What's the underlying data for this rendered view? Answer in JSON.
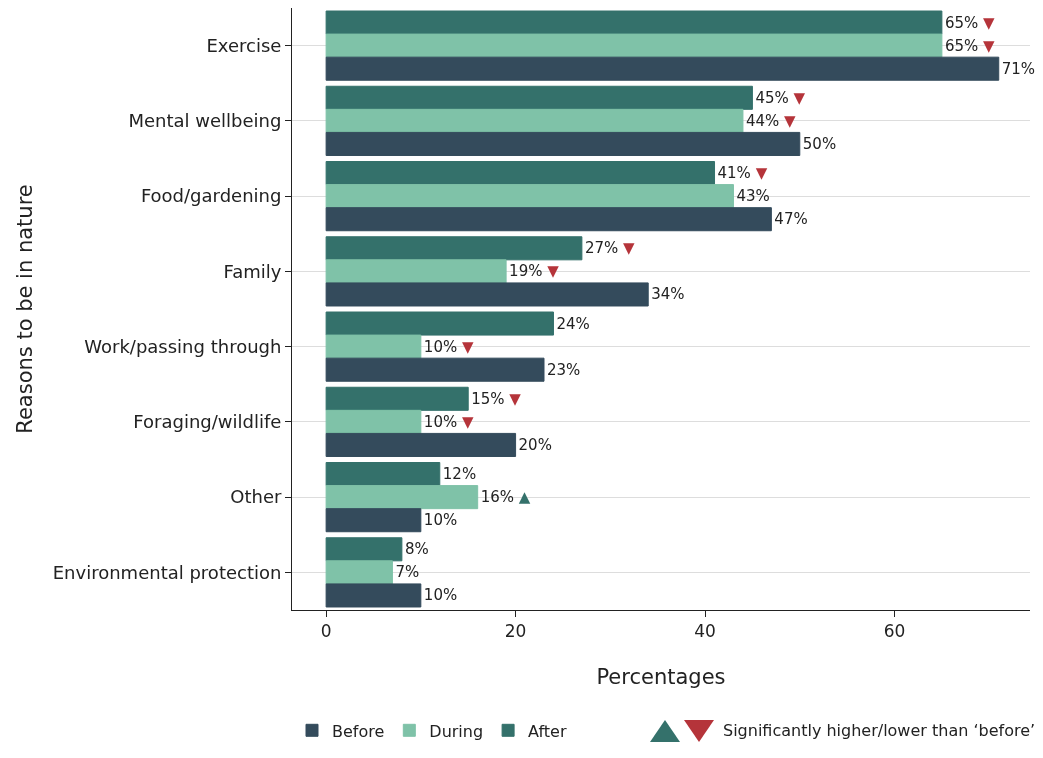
{
  "chart_data": {
    "type": "bar",
    "orientation": "horizontal",
    "categories": [
      "Exercise",
      "Mental wellbeing",
      "Food/gardening",
      "Family",
      "Work/passing through",
      "Foraging/wildlife",
      "Other",
      "Environmental protection"
    ],
    "series": [
      {
        "name": "Before",
        "color": "#344b5c",
        "values": [
          71,
          50,
          47,
          34,
          23,
          20,
          10,
          10
        ],
        "value_labels": [
          "71%",
          "50%",
          "47%",
          "34%",
          "23%",
          "20%",
          "10%",
          "10%"
        ]
      },
      {
        "name": "During",
        "color": "#7fc2a8",
        "values": [
          65,
          44,
          43,
          19,
          10,
          10,
          16,
          7
        ],
        "value_labels": [
          "65% ▼",
          "44% ▼",
          "43%",
          "19% ▼",
          "10% ▼",
          "10% ▼",
          "16% ▲",
          "7%"
        ]
      },
      {
        "name": "After",
        "color": "#34716b",
        "values": [
          65,
          45,
          41,
          27,
          24,
          15,
          12,
          8
        ],
        "value_labels": [
          "65% ▼",
          "45% ▼",
          "41% ▼",
          "27% ▼",
          "24%",
          "15% ▼",
          "12%",
          "8%"
        ]
      }
    ],
    "xlabel": "Percentages",
    "ylabel": "Reasons to be in nature",
    "xlim": [
      -3.6,
      74.3
    ],
    "xticks": [
      0,
      20,
      40,
      60
    ],
    "grid": "y",
    "legend": "bottom",
    "annotations": [
      "Significantly higher/lower than ‘before’"
    ]
  }
}
